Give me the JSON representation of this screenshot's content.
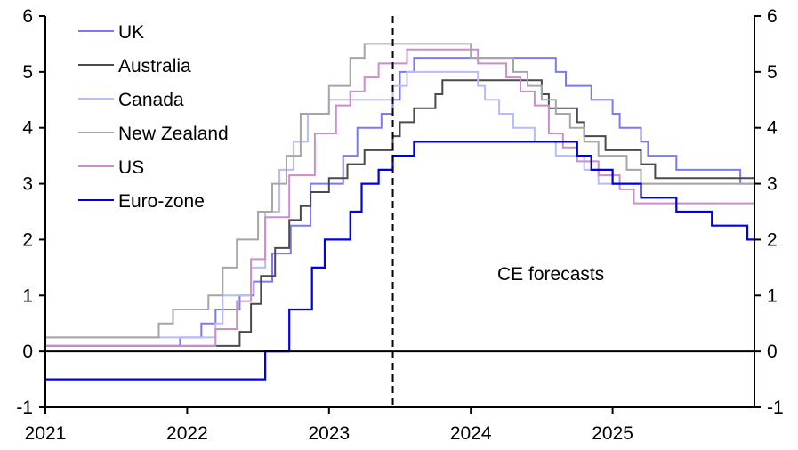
{
  "chart_data": {
    "type": "line",
    "step": true,
    "title": "",
    "xlabel": "",
    "ylabel": "",
    "xlim": [
      2021,
      2026
    ],
    "ylim": [
      -1,
      6
    ],
    "x_ticks": [
      "2021",
      "2022",
      "2023",
      "2024",
      "2025"
    ],
    "y_ticks_left": [
      "6",
      "5",
      "4",
      "3",
      "2",
      "1",
      "0",
      "-1"
    ],
    "y_ticks_right": [
      "6",
      "5",
      "4",
      "3",
      "2",
      "1",
      "0",
      "-1"
    ],
    "legend_position": "top-left",
    "forecast_line_x": 2023.45,
    "annotation": "CE forecasts",
    "series": [
      {
        "name": "UK",
        "color": "#7b7bf0",
        "points": [
          [
            2021,
            0.1
          ],
          [
            2021.95,
            0.25
          ],
          [
            2022.1,
            0.5
          ],
          [
            2022.2,
            0.75
          ],
          [
            2022.37,
            1.0
          ],
          [
            2022.47,
            1.25
          ],
          [
            2022.6,
            1.75
          ],
          [
            2022.73,
            2.25
          ],
          [
            2022.87,
            3.0
          ],
          [
            2023.1,
            3.5
          ],
          [
            2023.2,
            4.0
          ],
          [
            2023.37,
            4.25
          ],
          [
            2023.45,
            4.5
          ],
          [
            2023.5,
            5.0
          ],
          [
            2023.6,
            5.25
          ],
          [
            2024.6,
            5.0
          ],
          [
            2024.67,
            4.75
          ],
          [
            2024.85,
            4.5
          ],
          [
            2025.0,
            4.25
          ],
          [
            2025.05,
            4.0
          ],
          [
            2025.2,
            3.75
          ],
          [
            2025.25,
            3.5
          ],
          [
            2025.45,
            3.25
          ],
          [
            2025.9,
            3.0
          ],
          [
            2026,
            3.0
          ]
        ]
      },
      {
        "name": "Australia",
        "color": "#4a4a4a",
        "points": [
          [
            2021,
            0.1
          ],
          [
            2022.37,
            0.35
          ],
          [
            2022.45,
            0.85
          ],
          [
            2022.52,
            1.35
          ],
          [
            2022.62,
            1.85
          ],
          [
            2022.72,
            2.35
          ],
          [
            2022.8,
            2.6
          ],
          [
            2022.87,
            2.85
          ],
          [
            2023.0,
            3.1
          ],
          [
            2023.13,
            3.35
          ],
          [
            2023.25,
            3.6
          ],
          [
            2023.45,
            3.85
          ],
          [
            2023.5,
            4.1
          ],
          [
            2023.6,
            4.35
          ],
          [
            2023.75,
            4.6
          ],
          [
            2023.8,
            4.85
          ],
          [
            2024.5,
            4.6
          ],
          [
            2024.55,
            4.35
          ],
          [
            2024.75,
            4.1
          ],
          [
            2024.8,
            3.85
          ],
          [
            2024.95,
            3.6
          ],
          [
            2025.2,
            3.35
          ],
          [
            2025.3,
            3.1
          ],
          [
            2026,
            3.1
          ]
        ]
      },
      {
        "name": "Canada",
        "color": "#b8bcf8",
        "points": [
          [
            2021,
            0.25
          ],
          [
            2022.2,
            0.5
          ],
          [
            2022.25,
            1.0
          ],
          [
            2022.45,
            1.5
          ],
          [
            2022.55,
            2.5
          ],
          [
            2022.65,
            3.25
          ],
          [
            2022.75,
            3.75
          ],
          [
            2022.85,
            4.25
          ],
          [
            2023.0,
            4.5
          ],
          [
            2023.45,
            4.75
          ],
          [
            2023.55,
            5.0
          ],
          [
            2024.05,
            4.75
          ],
          [
            2024.1,
            4.5
          ],
          [
            2024.2,
            4.25
          ],
          [
            2024.3,
            4.0
          ],
          [
            2024.45,
            3.75
          ],
          [
            2024.6,
            3.5
          ],
          [
            2024.8,
            3.25
          ],
          [
            2024.9,
            3.0
          ],
          [
            2026,
            3.0
          ]
        ]
      },
      {
        "name": "New Zealand",
        "color": "#a6a6a6",
        "points": [
          [
            2021,
            0.25
          ],
          [
            2021.8,
            0.5
          ],
          [
            2021.9,
            0.75
          ],
          [
            2022.15,
            1.0
          ],
          [
            2022.25,
            1.5
          ],
          [
            2022.35,
            2.0
          ],
          [
            2022.5,
            2.5
          ],
          [
            2022.6,
            3.0
          ],
          [
            2022.7,
            3.5
          ],
          [
            2022.8,
            4.25
          ],
          [
            2022.92,
            4.25
          ],
          [
            2023.0,
            4.75
          ],
          [
            2023.15,
            5.25
          ],
          [
            2023.25,
            5.5
          ],
          [
            2023.95,
            5.5
          ],
          [
            2024.0,
            5.25
          ],
          [
            2024.3,
            5.0
          ],
          [
            2024.4,
            4.75
          ],
          [
            2024.5,
            4.5
          ],
          [
            2024.6,
            4.25
          ],
          [
            2024.7,
            4.0
          ],
          [
            2024.8,
            3.75
          ],
          [
            2024.9,
            3.5
          ],
          [
            2025.1,
            3.25
          ],
          [
            2025.2,
            3.0
          ],
          [
            2026,
            3.0
          ]
        ]
      },
      {
        "name": "US",
        "color": "#c98fcc",
        "points": [
          [
            2021,
            0.1
          ],
          [
            2022.2,
            0.4
          ],
          [
            2022.35,
            0.9
          ],
          [
            2022.45,
            1.65
          ],
          [
            2022.55,
            2.4
          ],
          [
            2022.72,
            3.15
          ],
          [
            2022.9,
            3.9
          ],
          [
            2023.05,
            4.4
          ],
          [
            2023.15,
            4.65
          ],
          [
            2023.25,
            4.9
          ],
          [
            2023.35,
            5.15
          ],
          [
            2023.55,
            5.4
          ],
          [
            2024.05,
            5.15
          ],
          [
            2024.25,
            4.9
          ],
          [
            2024.35,
            4.65
          ],
          [
            2024.45,
            4.4
          ],
          [
            2024.55,
            3.9
          ],
          [
            2024.65,
            3.65
          ],
          [
            2024.75,
            3.4
          ],
          [
            2024.9,
            3.15
          ],
          [
            2025.05,
            2.9
          ],
          [
            2025.15,
            2.65
          ],
          [
            2026,
            2.65
          ]
        ]
      },
      {
        "name": "Euro-zone",
        "color": "#0000e6",
        "points": [
          [
            2021,
            -0.5
          ],
          [
            2022.55,
            0.0
          ],
          [
            2022.72,
            0.75
          ],
          [
            2022.88,
            1.5
          ],
          [
            2022.97,
            2.0
          ],
          [
            2023.15,
            2.5
          ],
          [
            2023.23,
            3.0
          ],
          [
            2023.35,
            3.25
          ],
          [
            2023.45,
            3.5
          ],
          [
            2023.6,
            3.75
          ],
          [
            2024.75,
            3.5
          ],
          [
            2024.85,
            3.25
          ],
          [
            2025.0,
            3.0
          ],
          [
            2025.2,
            2.75
          ],
          [
            2025.45,
            2.5
          ],
          [
            2025.7,
            2.25
          ],
          [
            2025.95,
            2.0
          ],
          [
            2026,
            2.0
          ]
        ]
      }
    ]
  }
}
